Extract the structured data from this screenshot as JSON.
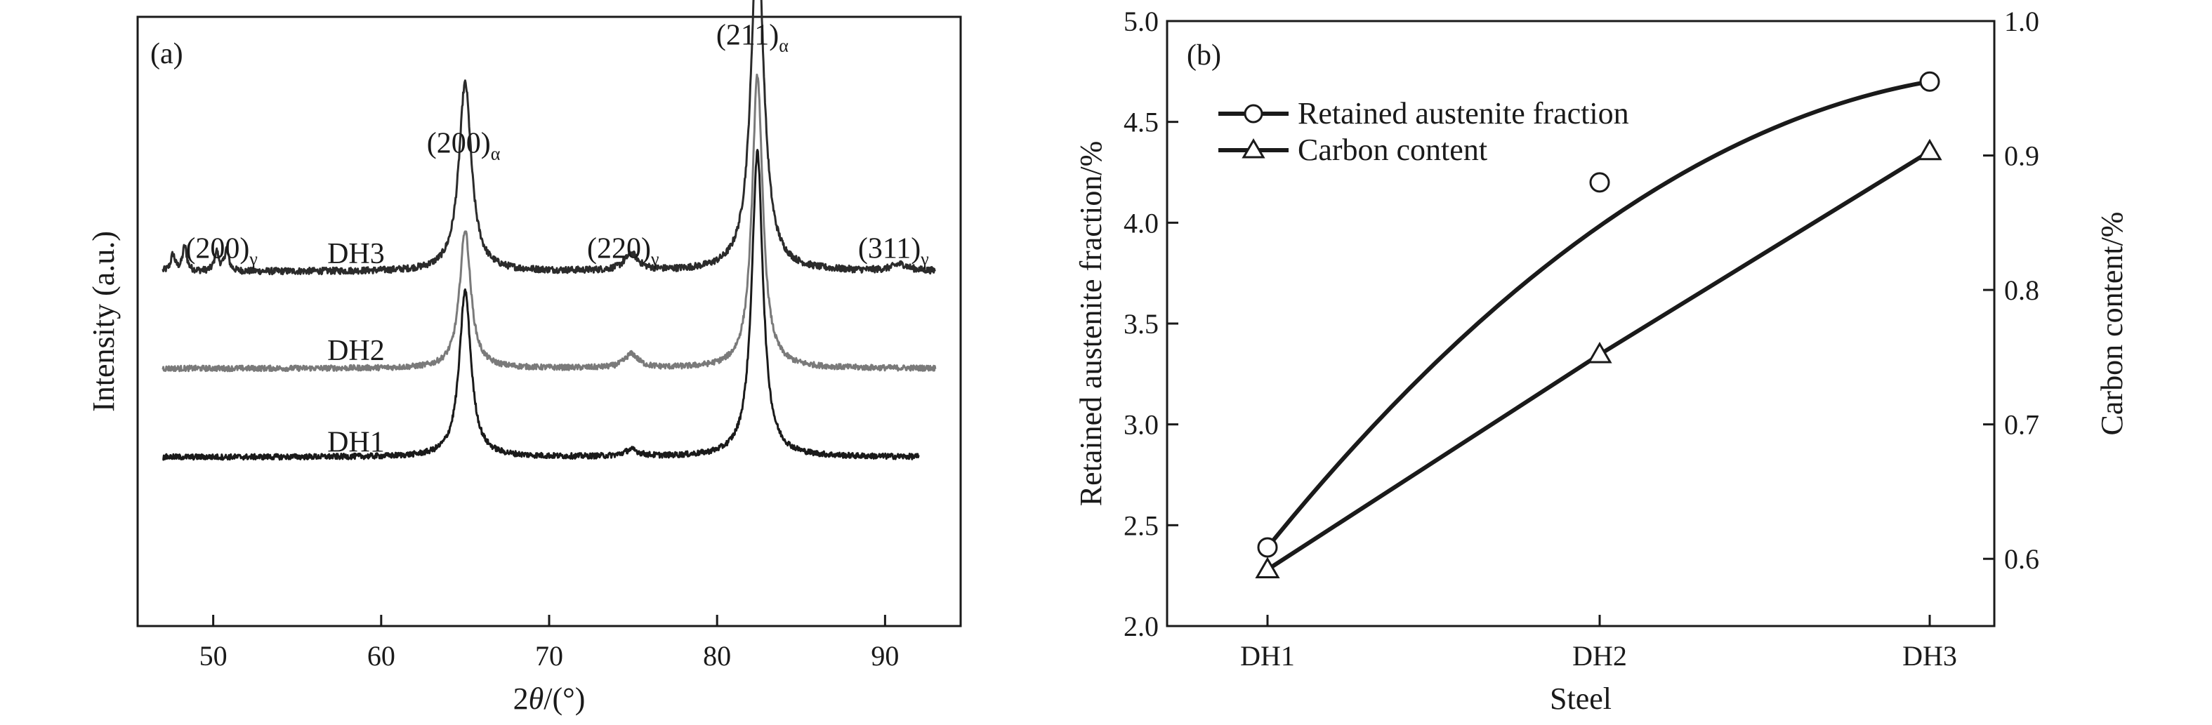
{
  "chart_data": [
    {
      "type": "line",
      "panel_label": "(a)",
      "xlabel_prefix": "2",
      "xlabel_theta": "θ",
      "xlabel_suffix": "/(°)",
      "ylabel": "Intensity (a.u.)",
      "xlim": [
        45.5,
        94.5
      ],
      "xticks": [
        50,
        60,
        70,
        80,
        90
      ],
      "y_axis_ticks": "none",
      "grid": false,
      "series": [
        {
          "name": "DH3",
          "color": "#2b2b2b",
          "baseline": 0.64,
          "noise": 0.006,
          "x_range": [
            47,
            93
          ],
          "peaks": [
            {
              "x": 47.6,
              "h": 0.03,
              "w": 0.15
            },
            {
              "x": 48.3,
              "h": 0.045,
              "w": 0.15
            },
            {
              "x": 50.2,
              "h": 0.035,
              "w": 0.15
            },
            {
              "x": 50.8,
              "h": 0.04,
              "w": 0.15
            },
            {
              "x": 65.0,
              "h": 0.34,
              "w": 0.45
            },
            {
              "x": 74.9,
              "h": 0.03,
              "w": 0.5
            },
            {
              "x": 82.4,
              "h": 0.62,
              "w": 0.45
            },
            {
              "x": 90.9,
              "h": 0.012,
              "w": 0.6
            }
          ]
        },
        {
          "name": "DH2",
          "color": "#7a7a7a",
          "baseline": 0.465,
          "noise": 0.005,
          "x_range": [
            47,
            93
          ],
          "peaks": [
            {
              "x": 65.0,
              "h": 0.25,
              "w": 0.4
            },
            {
              "x": 74.9,
              "h": 0.025,
              "w": 0.5
            },
            {
              "x": 82.4,
              "h": 0.53,
              "w": 0.38
            }
          ]
        },
        {
          "name": "DH1",
          "color": "#1a1a1a",
          "baseline": 0.305,
          "noise": 0.005,
          "x_range": [
            47,
            92
          ],
          "peaks": [
            {
              "x": 65.0,
              "h": 0.3,
              "w": 0.42
            },
            {
              "x": 74.9,
              "h": 0.012,
              "w": 0.5
            },
            {
              "x": 82.4,
              "h": 0.55,
              "w": 0.4
            }
          ]
        }
      ],
      "peak_labels": [
        {
          "text": "(200)",
          "sub": "γ",
          "x": 50.5,
          "y": 0.665
        },
        {
          "text": "(200)",
          "sub": "α",
          "x": 64.9,
          "y": 0.855
        },
        {
          "text": "(220)",
          "sub": "γ",
          "x": 74.4,
          "y": 0.665
        },
        {
          "text": "(211)",
          "sub": "α",
          "x": 82.1,
          "y": 1.05
        },
        {
          "text": "(311)",
          "sub": "γ",
          "x": 90.5,
          "y": 0.665
        }
      ],
      "sample_labels": [
        {
          "text": "DH3",
          "x": 58.5,
          "y": 0.655
        },
        {
          "text": "DH2",
          "x": 58.5,
          "y": 0.48
        },
        {
          "text": "DH1",
          "x": 58.5,
          "y": 0.315
        }
      ]
    },
    {
      "type": "line",
      "panel_label": "(b)",
      "xlabel": "Steel",
      "ylabel": "Retained austenite fraction/%",
      "y2label": "Carbon content/%",
      "categories": [
        "DH1",
        "DH2",
        "DH3"
      ],
      "ylim": [
        2.0,
        5.0
      ],
      "yticks": [
        "2.0",
        "2.5",
        "3.0",
        "3.5",
        "4.0",
        "4.5",
        "5.0"
      ],
      "y2lim": [
        0.55,
        1.0
      ],
      "y2ticks": [
        "0.6",
        "0.7",
        "0.8",
        "0.9",
        "1.0"
      ],
      "grid": false,
      "legend_position": "top-left",
      "series": [
        {
          "name": "Retained austenite fraction",
          "marker": "circle",
          "axis": "left",
          "values": [
            2.39,
            4.2,
            4.7
          ],
          "fit_values": [
            2.39,
            3.98,
            4.7
          ]
        },
        {
          "name": "Carbon content",
          "marker": "triangle",
          "axis": "right",
          "values": [
            0.592,
            0.752,
            0.903
          ],
          "fit_values": [
            0.592,
            0.752,
            0.903
          ]
        }
      ]
    }
  ]
}
